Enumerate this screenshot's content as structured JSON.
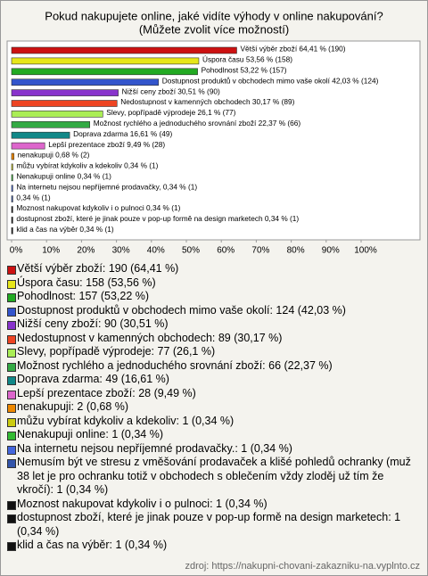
{
  "chart_data": {
    "type": "bar",
    "orientation": "horizontal",
    "title": "Pokud nakupujete online, jaké vidíte výhody v online nakupování?",
    "subtitle": "(Můžete zvolit více možností)",
    "values": [
      64.41,
      53.56,
      53.22,
      42.03,
      30.51,
      30.17,
      26.1,
      22.37,
      16.61,
      9.49,
      0.68,
      0.34,
      0.34,
      0.34,
      0.34,
      0.34,
      0.34,
      0.34
    ],
    "value_labels": [
      "Větší výběr zboží 64,41 % (190)",
      "Úspora času 53,56 % (158)",
      "Pohodlnost 53,22 % (157)",
      "Dostupnost produktů v obchodech mimo vaše okolí 42,03 % (124)",
      "Nižší ceny zboží 30,51 % (90)",
      "Nedostupnost v kamenných obchodech 30,17 % (89)",
      "Slevy, popřípadě výprodeje 26,1 % (77)",
      "Možnost rychlého a jednoduchého srovnání zboží 22,37 % (66)",
      "Doprava zdarma 16,61 % (49)",
      "Lepší prezentace zboží 9,49 % (28)",
      "nenakupuji 0,68 % (2)",
      "můžu vybírat kdykoliv a kdekoliv 0,34 % (1)",
      "Nenakupuji online 0,34 % (1)",
      "Na internetu nejsou nepříjemné prodavačky, 0,34 % (1)",
      "0,34 % (1)",
      "Moznost nakupovat kdykoliv i o pulnoci 0,34 % (1)",
      "dostupnost zboží, které je jinak pouze v pop-up formě na design marketech 0,34 % (1)",
      "klid a čas na výběr 0,34 % (1)"
    ],
    "legend_labels": [
      "Větší výběr zboží: 190 (64,41 %)",
      "Úspora času: 158 (53,56 %)",
      "Pohodlnost: 157 (53,22 %)",
      "Dostupnost produktů v obchodech mimo vaše okolí: 124 (42,03 %)",
      "Nižší ceny zboží: 90 (30,51 %)",
      "Nedostupnost v kamenných obchodech: 89 (30,17 %)",
      "Slevy, popřípadě výprodeje: 77 (26,1 %)",
      "Možnost rychlého a jednoduchého srovnání zboží: 66 (22,37 %)",
      "Doprava zdarma: 49 (16,61 %)",
      "Lepší prezentace zboží: 28 (9,49 %)",
      "nenakupuji: 2 (0,68 %)",
      "můžu vybírat kdykoliv a kdekoliv: 1 (0,34 %)",
      "Nenakupuji online: 1 (0,34 %)",
      "Na internetu nejsou nepříjemné prodavačky.: 1 (0,34 %)",
      "Nemusím být ve stresu z vměšování prodavaček a klišé pohledů ochranky (muž 38 let je pro ochranku totiž v obchodech s oblečením vždy zloděj už tím že vkročí): 1 (0,34 %)",
      "Moznost nakupovat kdykoliv i o pulnoci: 1 (0,34 %)",
      "dostupnost zboží, které je jinak pouze v pop-up formě na design marketech: 1 (0,34 %)",
      "klid a čas na výběr: 1 (0,34 %)"
    ],
    "colors": [
      "#cc1111",
      "#e6e61a",
      "#22aa22",
      "#3355cc",
      "#8833cc",
      "#ee4422",
      "#aaee55",
      "#33aa44",
      "#118888",
      "#dd66cc",
      "#ee8800",
      "#cccc11",
      "#33bb33",
      "#4466dd",
      "#3355aa",
      "#111111",
      "#111111",
      "#111111"
    ],
    "xlim": [
      0,
      100
    ],
    "xticks": [
      {
        "value": 0,
        "label": "0%"
      },
      {
        "value": 10,
        "label": "10%"
      },
      {
        "value": 20,
        "label": "20%"
      },
      {
        "value": 30,
        "label": "30%"
      },
      {
        "value": 40,
        "label": "40%"
      },
      {
        "value": 50,
        "label": "50%"
      },
      {
        "value": 60,
        "label": "60%"
      },
      {
        "value": 70,
        "label": "70%"
      },
      {
        "value": 80,
        "label": "80%"
      },
      {
        "value": 90,
        "label": "90%"
      },
      {
        "value": 100,
        "label": "100%"
      }
    ],
    "source": "zdroj: https://nakupni-chovani-zakazniku-na.vyplnto.cz"
  }
}
